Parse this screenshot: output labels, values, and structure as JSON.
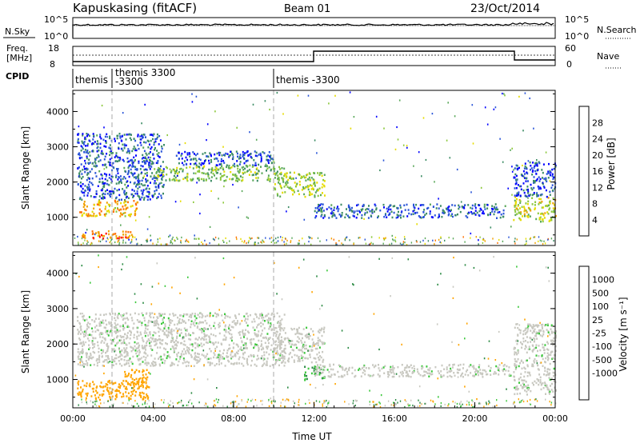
{
  "header": {
    "station": "Kapuskasing (fitACF)",
    "beam": "Beam 01",
    "date": "23/Oct/2014"
  },
  "noise_panel": {
    "left_label": "N.Sky",
    "right_label": "N.Search",
    "left_ticks": [
      "10^5",
      "10^0"
    ],
    "right_ticks": [
      "10^5",
      "10^0"
    ]
  },
  "freq_panel": {
    "left_label_top": "Freq.",
    "left_label_bottom": "[MHz]",
    "right_label": "Nave",
    "left_ticks": [
      "18",
      "8"
    ],
    "right_ticks": [
      "60",
      "0"
    ]
  },
  "cpid_panel": {
    "label": "CPID",
    "segments": [
      {
        "start_ut": 0.0,
        "text": "themis"
      },
      {
        "start_ut": 1.3,
        "text": "themis 3300",
        "text2": "-3300"
      },
      {
        "start_ut": 10.0,
        "text": "themis -3300"
      }
    ]
  },
  "chart_data": [
    {
      "type": "heatmap",
      "name": "power",
      "ylabel": "Slant Range [km]",
      "yticks": [
        "1000",
        "2000",
        "3000",
        "4000"
      ],
      "ylim": [
        200,
        4600
      ],
      "xlim": [
        0,
        24
      ],
      "colorbar": {
        "label": "Power [dB]",
        "ticks": [
          "4",
          "8",
          "12",
          "16",
          "20",
          "24",
          "28"
        ],
        "range": [
          0,
          32
        ],
        "colors": [
          "#0000ff",
          "#2a55d8",
          "#3c8c64",
          "#5aa85a",
          "#8cc83c",
          "#e6dc00",
          "#f0a000",
          "#ff6e00",
          "#ff0000"
        ]
      },
      "echo_regions": [
        {
          "t0": 0.2,
          "t1": 4.5,
          "r0": 1500,
          "r1": 3400,
          "level": 6
        },
        {
          "t0": 0.3,
          "t1": 3.2,
          "r0": 1050,
          "r1": 1500,
          "level": 22
        },
        {
          "t0": 0.2,
          "t1": 3.0,
          "r0": 420,
          "r1": 650,
          "level": 26
        },
        {
          "t0": 4.0,
          "t1": 10.5,
          "r0": 2050,
          "r1": 2500,
          "level": 14
        },
        {
          "t0": 5.0,
          "t1": 10.0,
          "r0": 2500,
          "r1": 2900,
          "level": 5
        },
        {
          "t0": 10.0,
          "t1": 12.5,
          "r0": 1600,
          "r1": 2300,
          "level": 16
        },
        {
          "t0": 12.0,
          "t1": 21.5,
          "r0": 1000,
          "r1": 1400,
          "level": 6
        },
        {
          "t0": 21.9,
          "t1": 24.0,
          "r0": 900,
          "r1": 1600,
          "level": 18
        },
        {
          "t0": 21.9,
          "t1": 24.0,
          "r0": 1600,
          "r1": 2600,
          "level": 5
        }
      ]
    },
    {
      "type": "heatmap",
      "name": "velocity",
      "ylabel": "Slant Range [km]",
      "yticks": [
        "1000",
        "2000",
        "3000",
        "4000"
      ],
      "ylim": [
        200,
        4600
      ],
      "xlim": [
        0,
        24
      ],
      "xlabel": "Time UT",
      "xticks": [
        "00:00",
        "04:00",
        "08:00",
        "12:00",
        "16:00",
        "20:00",
        "00:00"
      ],
      "colorbar": {
        "label": "Velocity [m s⁻¹]",
        "ticks": [
          "1000",
          "500",
          "100",
          "25",
          "-25",
          "-100",
          "-500",
          "-1000"
        ],
        "colors": [
          "#0a28c8",
          "#1e5a96",
          "#2e8c46",
          "#3cc83c",
          "#c8c8c0",
          "#c8c8c0",
          "#ffa500",
          "#ff7800",
          "#ff4600",
          "#e60000"
        ]
      },
      "echo_regions": [
        {
          "t0": 0.2,
          "t1": 10.5,
          "r0": 1400,
          "r1": 2900,
          "level": 0
        },
        {
          "t0": 0.2,
          "t1": 3.8,
          "r0": 450,
          "r1": 1000,
          "level": -200
        },
        {
          "t0": 2.5,
          "t1": 3.8,
          "r0": 800,
          "r1": 1300,
          "level": -400
        },
        {
          "t0": 10.0,
          "t1": 12.5,
          "r0": 1500,
          "r1": 2500,
          "level": 0
        },
        {
          "t0": 11.5,
          "t1": 12.5,
          "r0": 1000,
          "r1": 1400,
          "level": 100
        },
        {
          "t0": 12.0,
          "t1": 21.8,
          "r0": 1100,
          "r1": 1450,
          "level": 0
        },
        {
          "t0": 21.9,
          "t1": 24.0,
          "r0": 600,
          "r1": 2600,
          "level": 0
        }
      ]
    }
  ]
}
